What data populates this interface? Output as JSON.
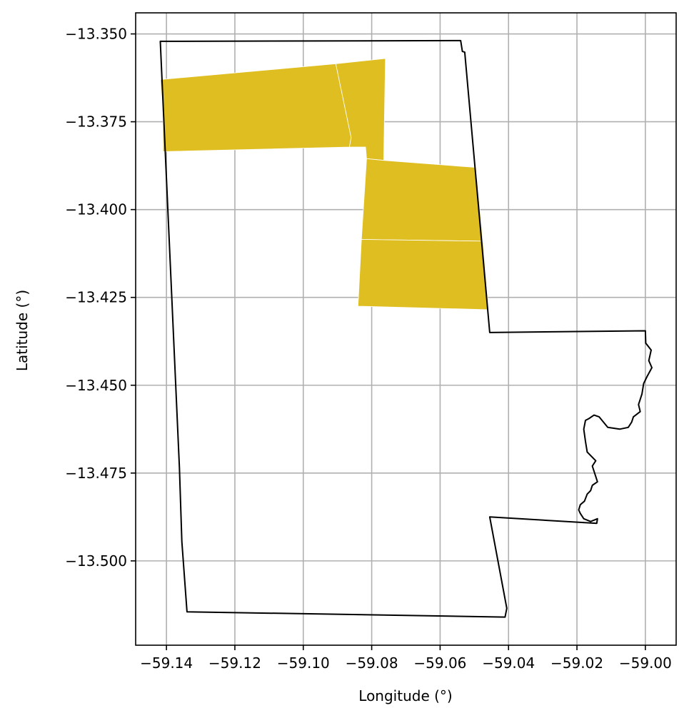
{
  "chart_data": {
    "type": "map",
    "xlabel": "Longitude (°)",
    "ylabel": "Latitude (°)",
    "xlim": [
      -59.149,
      -58.991
    ],
    "ylim": [
      -13.524,
      -13.344
    ],
    "grid": true,
    "x_ticks": [
      -59.14,
      -59.12,
      -59.1,
      -59.08,
      -59.06,
      -59.04,
      -59.02,
      -59.0
    ],
    "x_tick_labels": [
      "−59.14",
      "−59.12",
      "−59.10",
      "−59.08",
      "−59.06",
      "−59.04",
      "−59.02",
      "−59.00"
    ],
    "y_ticks": [
      -13.35,
      -13.375,
      -13.4,
      -13.425,
      -13.45,
      -13.475,
      -13.5
    ],
    "y_tick_labels": [
      "−13.350",
      "−13.375",
      "−13.400",
      "−13.425",
      "−13.450",
      "−13.475",
      "−13.500"
    ],
    "boundary_color": "#000000",
    "parcel_color": "#dfbe22",
    "boundary": [
      [
        -59.1418,
        -13.3521
      ],
      [
        -59.054,
        -13.3519
      ],
      [
        -59.0535,
        -13.355
      ],
      [
        -59.0528,
        -13.3552
      ],
      [
        -59.0455,
        -13.435
      ],
      [
        -59.0,
        -13.4345
      ],
      [
        -58.9999,
        -13.438
      ],
      [
        -58.9983,
        -13.44
      ],
      [
        -58.999,
        -13.443
      ],
      [
        -58.9981,
        -13.445
      ],
      [
        -58.9995,
        -13.4475
      ],
      [
        -59.0005,
        -13.4495
      ],
      [
        -59.001,
        -13.4525
      ],
      [
        -59.002,
        -13.4555
      ],
      [
        -59.0015,
        -13.4575
      ],
      [
        -59.0035,
        -13.459
      ],
      [
        -59.004,
        -13.4605
      ],
      [
        -59.005,
        -13.462
      ],
      [
        -59.0075,
        -13.4625
      ],
      [
        -59.011,
        -13.462
      ],
      [
        -59.0135,
        -13.459
      ],
      [
        -59.015,
        -13.4585
      ],
      [
        -59.0165,
        -13.4595
      ],
      [
        -59.0175,
        -13.46
      ],
      [
        -59.018,
        -13.4625
      ],
      [
        -59.0175,
        -13.466
      ],
      [
        -59.017,
        -13.469
      ],
      [
        -59.0155,
        -13.4705
      ],
      [
        -59.0145,
        -13.4715
      ],
      [
        -59.0155,
        -13.473
      ],
      [
        -59.0145,
        -13.476
      ],
      [
        -59.014,
        -13.4775
      ],
      [
        -59.0155,
        -13.4785
      ],
      [
        -59.016,
        -13.48
      ],
      [
        -59.017,
        -13.481
      ],
      [
        -59.0178,
        -13.483
      ],
      [
        -59.019,
        -13.484
      ],
      [
        -59.0195,
        -13.4855
      ],
      [
        -59.019,
        -13.4865
      ],
      [
        -59.018,
        -13.488
      ],
      [
        -59.016,
        -13.4888
      ],
      [
        -59.014,
        -13.488
      ],
      [
        -59.0142,
        -13.4893
      ],
      [
        -59.0455,
        -13.4875
      ],
      [
        -59.0405,
        -13.5135
      ],
      [
        -59.041,
        -13.516
      ],
      [
        -59.134,
        -13.5145
      ],
      [
        -59.1355,
        -13.4945
      ],
      [
        -59.1362,
        -13.4735
      ],
      [
        -59.1418,
        -13.3521
      ]
    ],
    "parcels": [
      [
        [
          -59.1418,
          -13.363
        ],
        [
          -59.0905,
          -13.3585
        ],
        [
          -59.086,
          -13.3795
        ],
        [
          -59.0865,
          -13.3822
        ],
        [
          -59.141,
          -13.3835
        ],
        [
          -59.141,
          -13.372
        ]
      ],
      [
        [
          -59.0905,
          -13.3585
        ],
        [
          -59.076,
          -13.357
        ],
        [
          -59.0765,
          -13.386
        ],
        [
          -59.0815,
          -13.3855
        ],
        [
          -59.0818,
          -13.3822
        ],
        [
          -59.0865,
          -13.3822
        ],
        [
          -59.086,
          -13.3795
        ]
      ],
      [
        [
          -59.0815,
          -13.3855
        ],
        [
          -59.0765,
          -13.386
        ],
        [
          -59.0495,
          -13.388
        ],
        [
          -59.0475,
          -13.409
        ],
        [
          -59.083,
          -13.4085
        ]
      ],
      [
        [
          -59.083,
          -13.4085
        ],
        [
          -59.0475,
          -13.409
        ],
        [
          -59.0458,
          -13.4285
        ],
        [
          -59.084,
          -13.4275
        ]
      ]
    ]
  }
}
